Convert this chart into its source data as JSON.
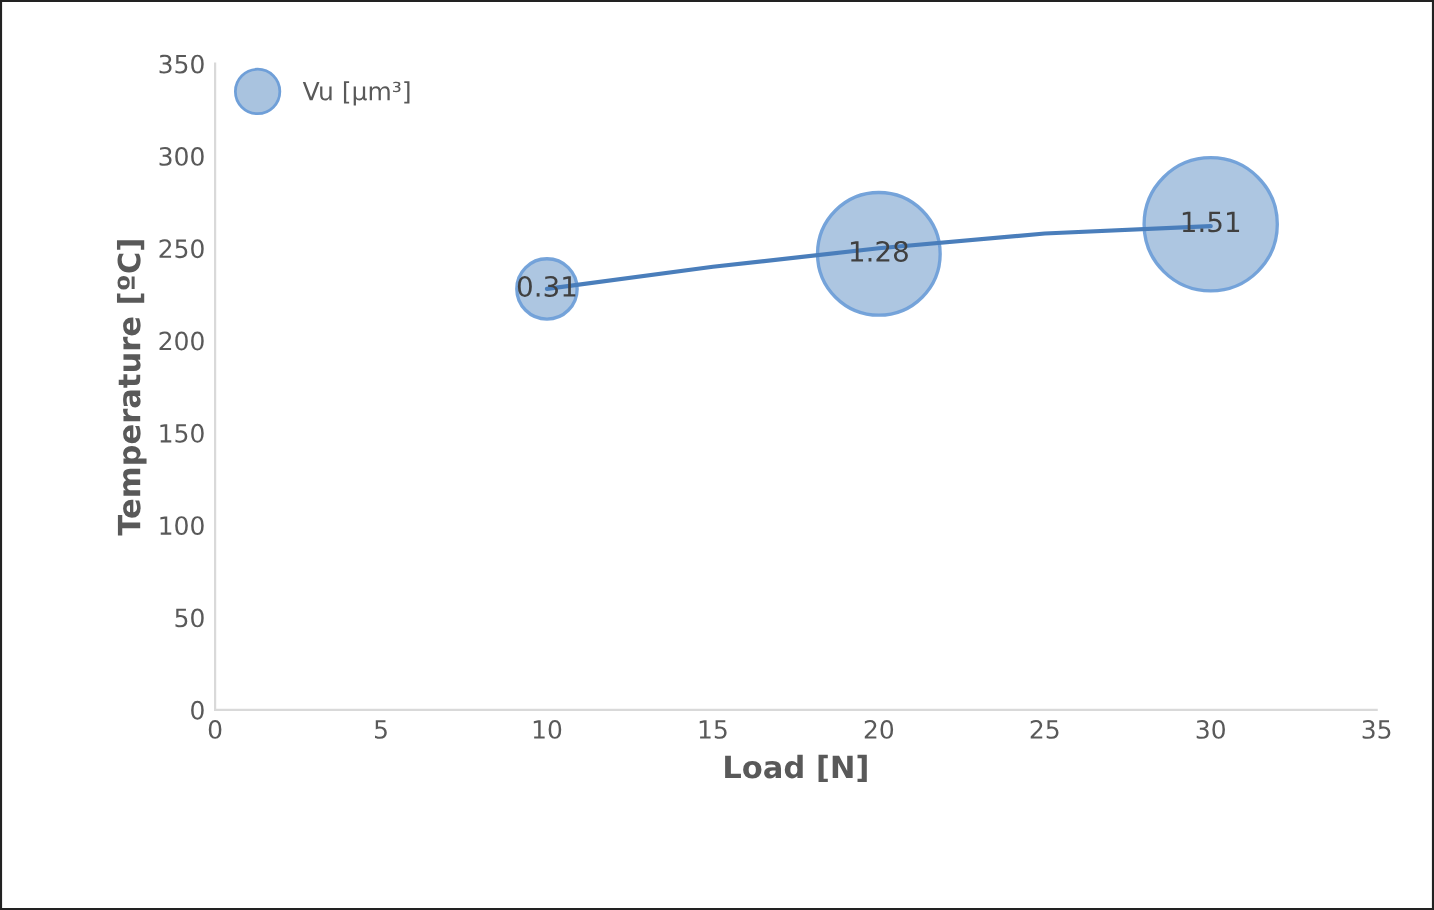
{
  "chart_data": {
    "type": "bubble",
    "xlabel": "Load [N]",
    "ylabel": "Temperature [ºC]",
    "series": [
      {
        "name": "Vu [µm³]",
        "type": "bubble",
        "color": "#a9c3df",
        "x": [
          10,
          20,
          30
        ],
        "values": [
          228,
          247,
          263
        ],
        "sizes": [
          0.31,
          1.28,
          1.51
        ],
        "value_labels": [
          "0.31",
          "1.28",
          "1.51"
        ]
      },
      {
        "type": "line",
        "color": "#4a7ebb",
        "x": [
          10,
          15,
          20,
          25,
          30
        ],
        "values": [
          228,
          240,
          250,
          258,
          262
        ]
      }
    ],
    "xlim": [
      0,
      35
    ],
    "xticks": [
      0,
      5,
      10,
      15,
      20,
      25,
      30,
      35
    ],
    "ylim": [
      0,
      350
    ],
    "yticks": [
      0,
      50,
      100,
      150,
      200,
      250,
      300,
      350
    ],
    "grid": false,
    "legend": "top left"
  }
}
